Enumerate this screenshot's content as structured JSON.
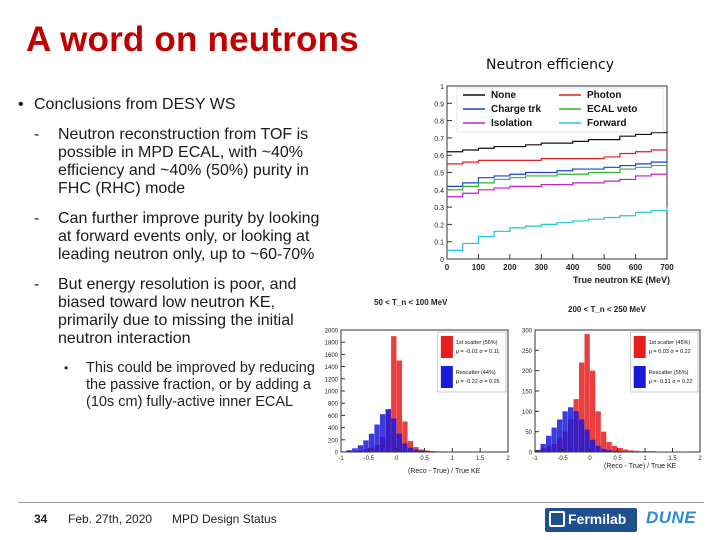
{
  "slide": {
    "title": "A word on neutrons",
    "chart_title": "Neutron efficiency",
    "bullet": "Conclusions from DESY WS",
    "sub_bullets": [
      "Neutron reconstruction from TOF is possible in MPD ECAL, with ~40% efficiency and ~40% (50%) purity in FHC (RHC) mode",
      "Can further improve purity by looking at forward events only, or looking at leading neutron only, up to ~60-70%",
      "But energy resolution is poor, and biased toward low neutron KE, primarily due to missing the initial neutron interaction"
    ],
    "sub_sub_bullet": "This could be improved by reducing the passive fraction, or by adding a (10s cm) fully-active inner ECAL"
  },
  "footer": {
    "page_number": "34",
    "date": "Feb. 27th, 2020",
    "event": "MPD Design Status"
  },
  "logos": {
    "fermilab": "Fermilab",
    "dune": "DUNE"
  },
  "chart_data": [
    {
      "type": "line",
      "name": "efficiency",
      "title": "Neutron efficiency",
      "xlabel": "True neutron KE (MeV)",
      "ylabel": "",
      "xlim": [
        0,
        700
      ],
      "ylim": [
        0,
        1
      ],
      "xticks": [
        "0",
        "100",
        "200",
        "300",
        "400",
        "500",
        "600",
        "700"
      ],
      "yticks": [
        "0",
        "0.1",
        "0.2",
        "0.3",
        "0.4",
        "0.5",
        "0.6",
        "0.7",
        "0.8",
        "0.9",
        "1"
      ],
      "x": [
        0,
        50,
        100,
        150,
        200,
        250,
        300,
        350,
        400,
        450,
        500,
        550,
        600,
        650,
        700
      ],
      "series": [
        {
          "name": "None",
          "color": "#111111",
          "values": [
            0.62,
            0.63,
            0.64,
            0.65,
            0.65,
            0.66,
            0.67,
            0.67,
            0.68,
            0.69,
            0.69,
            0.71,
            0.72,
            0.73,
            0.74
          ]
        },
        {
          "name": "Photon",
          "color": "#e02020",
          "values": [
            0.55,
            0.56,
            0.57,
            0.57,
            0.57,
            0.57,
            0.58,
            0.58,
            0.58,
            0.58,
            0.59,
            0.61,
            0.62,
            0.63,
            0.64
          ]
        },
        {
          "name": "Charge trk",
          "color": "#1e3ee0",
          "values": [
            0.42,
            0.44,
            0.47,
            0.48,
            0.49,
            0.5,
            0.5,
            0.51,
            0.52,
            0.52,
            0.53,
            0.54,
            0.55,
            0.56,
            0.57
          ]
        },
        {
          "name": "ECAL veto",
          "color": "#2fb52f",
          "values": [
            0.4,
            0.42,
            0.44,
            0.46,
            0.47,
            0.48,
            0.48,
            0.49,
            0.49,
            0.5,
            0.5,
            0.52,
            0.53,
            0.54,
            0.55
          ]
        },
        {
          "name": "Isolation",
          "color": "#c021c0",
          "values": [
            0.36,
            0.38,
            0.4,
            0.41,
            0.42,
            0.42,
            0.43,
            0.43,
            0.44,
            0.44,
            0.45,
            0.46,
            0.48,
            0.49,
            0.5
          ]
        },
        {
          "name": "Forward",
          "color": "#22c4d8",
          "values": [
            0.05,
            0.09,
            0.13,
            0.16,
            0.18,
            0.19,
            0.2,
            0.21,
            0.22,
            0.23,
            0.24,
            0.25,
            0.27,
            0.28,
            0.3
          ]
        }
      ]
    },
    {
      "type": "bar",
      "name": "resolution-low",
      "title": "50 < T_n < 100 MeV",
      "xlabel": "(Reco - True) / True KE",
      "ylabel": "",
      "xlim": [
        -1,
        2
      ],
      "ylim": [
        0,
        2000
      ],
      "xticks": [
        "-1",
        "-0.5",
        "0",
        "0.5",
        "1",
        "1.5",
        "2"
      ],
      "yticks": [
        "0",
        "200",
        "400",
        "600",
        "800",
        "1000",
        "1200",
        "1400",
        "1600",
        "1800",
        "2000"
      ],
      "bin_centers": [
        -0.95,
        -0.85,
        -0.75,
        -0.65,
        -0.55,
        -0.45,
        -0.35,
        -0.25,
        -0.15,
        -0.05,
        0.05,
        0.15,
        0.25,
        0.35,
        0.45,
        0.55,
        0.65,
        0.75,
        0.85,
        0.95,
        1.1,
        1.3,
        1.5,
        1.7,
        1.9
      ],
      "series": [
        {
          "name": "1st scatter (56%)",
          "stats": "μ = -0.01 σ = 0.11",
          "color": "#e81c1c",
          "values": [
            5,
            10,
            15,
            25,
            40,
            70,
            120,
            250,
            700,
            1900,
            1500,
            500,
            180,
            80,
            40,
            25,
            15,
            10,
            8,
            6,
            4,
            3,
            2,
            2,
            1
          ]
        },
        {
          "name": "Rescatter (44%)",
          "stats": "μ = -0.22 σ = 0.26",
          "color": "#1a1ad8",
          "values": [
            10,
            30,
            60,
            110,
            190,
            300,
            450,
            620,
            700,
            550,
            300,
            140,
            70,
            40,
            25,
            15,
            10,
            7,
            5,
            4,
            3,
            2,
            1,
            1,
            0
          ]
        }
      ]
    },
    {
      "type": "bar",
      "name": "resolution-high",
      "title": "200 < T_n < 250 MeV",
      "xlabel": "(Reco - True) / True KE",
      "ylabel": "",
      "xlim": [
        -1,
        2
      ],
      "ylim": [
        0,
        300
      ],
      "xticks": [
        "-1",
        "-0.5",
        "0",
        "0.5",
        "1",
        "1.5",
        "2"
      ],
      "yticks": [
        "0",
        "50",
        "100",
        "150",
        "200",
        "250",
        "300"
      ],
      "bin_centers": [
        -0.95,
        -0.85,
        -0.75,
        -0.65,
        -0.55,
        -0.45,
        -0.35,
        -0.25,
        -0.15,
        -0.05,
        0.05,
        0.15,
        0.25,
        0.35,
        0.45,
        0.55,
        0.65,
        0.75,
        0.85,
        0.95,
        1.1,
        1.3,
        1.5,
        1.7,
        1.9
      ],
      "series": [
        {
          "name": "1st scatter (45%)",
          "stats": "μ = 0.03 σ = 0.22",
          "color": "#e81c1c",
          "values": [
            5,
            10,
            15,
            20,
            35,
            50,
            80,
            130,
            220,
            290,
            200,
            100,
            50,
            25,
            15,
            10,
            6,
            4,
            3,
            2,
            2,
            1,
            1,
            1,
            0
          ]
        },
        {
          "name": "Rescatter (55%)",
          "stats": "μ = -0.31 σ = 0.22",
          "color": "#1a1ad8",
          "values": [
            5,
            20,
            40,
            60,
            80,
            100,
            110,
            100,
            80,
            55,
            30,
            15,
            8,
            5,
            3,
            2,
            1,
            1,
            0,
            0,
            0,
            0,
            0,
            0,
            0
          ]
        }
      ]
    }
  ]
}
